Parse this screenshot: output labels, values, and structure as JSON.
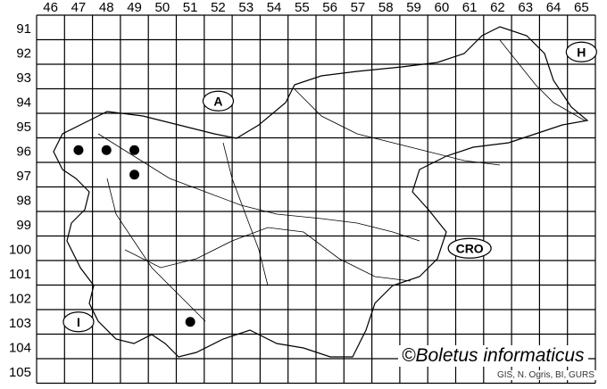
{
  "map": {
    "columns": [
      "46",
      "47",
      "48",
      "49",
      "50",
      "51",
      "52",
      "53",
      "54",
      "55",
      "56",
      "57",
      "58",
      "59",
      "60",
      "61",
      "62",
      "63",
      "64",
      "65"
    ],
    "rows": [
      "91",
      "92",
      "93",
      "94",
      "95",
      "96",
      "97",
      "98",
      "99",
      "100",
      "101",
      "102",
      "103",
      "104",
      "105"
    ],
    "country_labels": [
      {
        "text": "A",
        "col": "52",
        "row": "94"
      },
      {
        "text": "H",
        "col": "65",
        "row": "92"
      },
      {
        "text": "CRO",
        "col": "61",
        "row": "100"
      },
      {
        "text": "I",
        "col": "47",
        "row": "103"
      }
    ],
    "records": [
      {
        "col": "47",
        "row": "96"
      },
      {
        "col": "48",
        "row": "96"
      },
      {
        "col": "49",
        "row": "96"
      },
      {
        "col": "49",
        "row": "97"
      },
      {
        "col": "51",
        "row": "103"
      }
    ],
    "copyright": "©Boletus informaticus",
    "source": "GIS, N. Ogris, BI, GURS"
  }
}
